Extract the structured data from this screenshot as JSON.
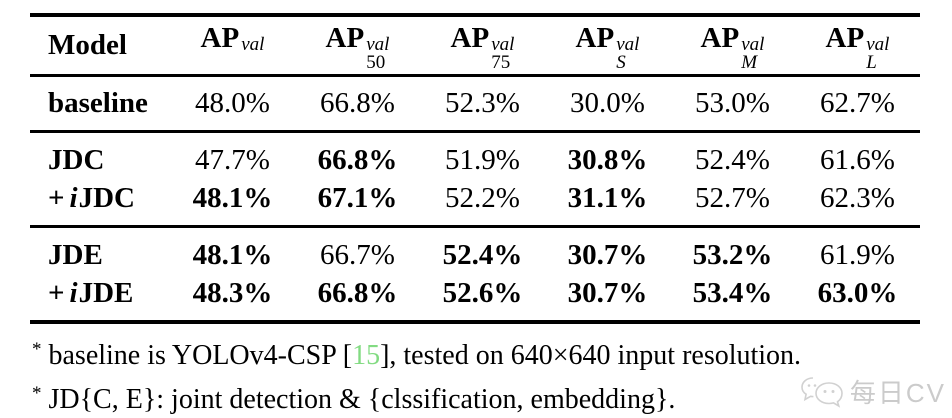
{
  "colors": {
    "text": "#000000",
    "background": "#ffffff",
    "citation_green": "#82db82",
    "watermark_gray": "#c9c9c9"
  },
  "table": {
    "columns": [
      {
        "label": "Model"
      },
      {
        "base": "AP",
        "sup": "val",
        "sub": ""
      },
      {
        "base": "AP",
        "sup": "val",
        "sub": "50"
      },
      {
        "base": "AP",
        "sup": "val",
        "sub": "75"
      },
      {
        "base": "AP",
        "sup": "val",
        "sub": "S"
      },
      {
        "base": "AP",
        "sup": "val",
        "sub": "M"
      },
      {
        "base": "AP",
        "sup": "val",
        "sub": "L"
      }
    ],
    "groups": [
      {
        "rows": [
          {
            "model": {
              "prefix": "",
              "italic": "",
              "name": "baseline"
            },
            "cells": [
              {
                "v": "48.0%",
                "bold": false
              },
              {
                "v": "66.8%",
                "bold": false
              },
              {
                "v": "52.3%",
                "bold": false
              },
              {
                "v": "30.0%",
                "bold": false
              },
              {
                "v": "53.0%",
                "bold": false
              },
              {
                "v": "62.7%",
                "bold": false
              }
            ]
          }
        ]
      },
      {
        "rows": [
          {
            "model": {
              "prefix": "",
              "italic": "",
              "name": "JDC"
            },
            "cells": [
              {
                "v": "47.7%",
                "bold": false
              },
              {
                "v": "66.8%",
                "bold": true
              },
              {
                "v": "51.9%",
                "bold": false
              },
              {
                "v": "30.8%",
                "bold": true
              },
              {
                "v": "52.4%",
                "bold": false
              },
              {
                "v": "61.6%",
                "bold": false
              }
            ]
          },
          {
            "model": {
              "prefix": "+",
              "italic": "i",
              "name": "JDC"
            },
            "cells": [
              {
                "v": "48.1%",
                "bold": true
              },
              {
                "v": "67.1%",
                "bold": true
              },
              {
                "v": "52.2%",
                "bold": false
              },
              {
                "v": "31.1%",
                "bold": true
              },
              {
                "v": "52.7%",
                "bold": false
              },
              {
                "v": "62.3%",
                "bold": false
              }
            ]
          }
        ]
      },
      {
        "rows": [
          {
            "model": {
              "prefix": "",
              "italic": "",
              "name": "JDE"
            },
            "cells": [
              {
                "v": "48.1%",
                "bold": true
              },
              {
                "v": "66.7%",
                "bold": false
              },
              {
                "v": "52.4%",
                "bold": true
              },
              {
                "v": "30.7%",
                "bold": true
              },
              {
                "v": "53.2%",
                "bold": true
              },
              {
                "v": "61.9%",
                "bold": false
              }
            ]
          },
          {
            "model": {
              "prefix": "+",
              "italic": "i",
              "name": "JDE"
            },
            "cells": [
              {
                "v": "48.3%",
                "bold": true
              },
              {
                "v": "66.8%",
                "bold": true
              },
              {
                "v": "52.6%",
                "bold": true
              },
              {
                "v": "30.7%",
                "bold": true
              },
              {
                "v": "53.4%",
                "bold": true
              },
              {
                "v": "63.0%",
                "bold": true
              }
            ]
          }
        ]
      }
    ]
  },
  "footnotes": [
    {
      "marker": "*",
      "before_cite": "baseline is YOLOv4-CSP [",
      "cite": "15",
      "after_cite": "], tested on 640×640 input resolution."
    },
    {
      "marker": "*",
      "text": "JD{C, E}: joint detection & {clssification, embedding}."
    }
  ],
  "watermark": {
    "icon": "chat-bubbles-icon",
    "text": "每日CV"
  }
}
